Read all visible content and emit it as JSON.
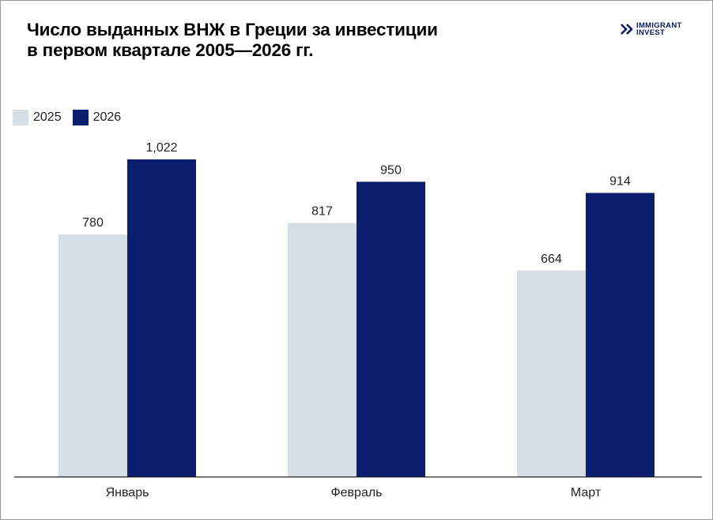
{
  "title_lines": [
    "Число выданных ВНЖ в Греции за инвестиции",
    "в первом квартале 2005—2026 гг."
  ],
  "logo": {
    "line1": "IMMIGRANT",
    "line2": "INVEST"
  },
  "colors": {
    "series_2025": "#d5dfe5",
    "series_2026": "#0b1f6e",
    "axis": "#222222",
    "text": "#222222"
  },
  "chart_data": {
    "type": "bar",
    "title": "Число выданных ВНЖ в Греции за инвестиции в первом квартале 2005—2026 гг.",
    "categories": [
      "Январь",
      "Февраль",
      "Март"
    ],
    "series": [
      {
        "name": "2025",
        "values": [
          780,
          817,
          664
        ],
        "labels": [
          "780",
          "817",
          "664"
        ]
      },
      {
        "name": "2026",
        "values": [
          1022,
          950,
          914
        ],
        "labels": [
          "1,022",
          "950",
          "914"
        ]
      }
    ],
    "ylim": [
      0,
      1050
    ],
    "grid": false,
    "legend": "top-left"
  }
}
